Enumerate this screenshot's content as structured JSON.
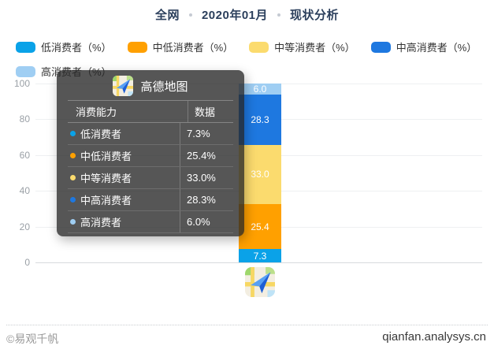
{
  "title": {
    "parts": [
      "全网",
      "2020年01月",
      "现状分析"
    ]
  },
  "chart_data": {
    "type": "bar",
    "stacked": true,
    "title": "全网 · 2020年01月 · 现状分析",
    "categories": [
      "高德地图"
    ],
    "series": [
      {
        "name": "低消费者（%）",
        "color": "#0AA2E8",
        "values": [
          7.3
        ]
      },
      {
        "name": "中低消费者（%）",
        "color": "#FFA000",
        "values": [
          25.4
        ]
      },
      {
        "name": "中等消费者（%）",
        "color": "#FBDB6E",
        "values": [
          33.0
        ]
      },
      {
        "name": "中高消费者（%）",
        "color": "#1E78E0",
        "values": [
          28.3
        ]
      },
      {
        "name": "高消费者（%）",
        "color": "#9FCEF3",
        "values": [
          6.0
        ]
      }
    ],
    "ylim": [
      0,
      100
    ],
    "yticks": [
      0,
      20,
      40,
      60,
      80,
      100
    ],
    "grid": true,
    "legend_position": "top",
    "bar_labels": [
      "7.3",
      "25.4",
      "33.0",
      "28.3",
      "6.0"
    ]
  },
  "tooltip": {
    "app_name": "高德地图",
    "app_icon": "gaode-map-icon",
    "columns": [
      "消费能力",
      "数据"
    ],
    "rows": [
      {
        "label": "低消费者",
        "value": "7.3%",
        "color": "#0AA2E8"
      },
      {
        "label": "中低消费者",
        "value": "25.4%",
        "color": "#FFA000"
      },
      {
        "label": "中等消费者",
        "value": "33.0%",
        "color": "#FBDB6E"
      },
      {
        "label": "中高消费者",
        "value": "28.3%",
        "color": "#1E78E0"
      },
      {
        "label": "高消费者",
        "value": "6.0%",
        "color": "#9FCEF3"
      }
    ]
  },
  "footer": {
    "left": "©易观千帆",
    "right": "qianfan.analysys.cn"
  },
  "colors": {
    "title_text": "#2B3F5C",
    "axis_label": "#9AA0A6",
    "gridline": "#EEF0F2",
    "tooltip_bg": "rgba(38,38,38,0.78)"
  }
}
